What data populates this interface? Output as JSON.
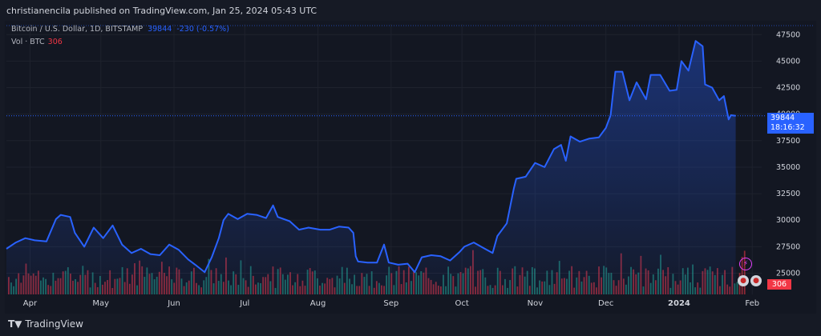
{
  "header": {
    "publish_text": "christianencila published on TradingView.com, Jan 25, 2024 05:43 UTC"
  },
  "legend": {
    "symbol": "Bitcoin / U.S. Dollar, 1D, BITSTAMP",
    "last": "39844",
    "change": "-230 (-0.57%)",
    "vol_label": "Vol · BTC",
    "vol_value": "306"
  },
  "badges": {
    "price": "39844",
    "countdown": "18:16:32",
    "volume": "306"
  },
  "footer": {
    "brand": "TradingView"
  },
  "colors": {
    "line": "#2962ff",
    "up": "#22ab94",
    "down": "#f23645",
    "bg": "#131722",
    "grid": "#1e222d"
  },
  "chart_data": {
    "type": "line",
    "y_ticks": [
      "47500",
      "45000",
      "42500",
      "40000",
      "37500",
      "35000",
      "32500",
      "30000",
      "27500",
      "25000"
    ],
    "ylim": [
      23000,
      48500
    ],
    "x_ticks": [
      {
        "label": "Apr",
        "x": "2023-04-01"
      },
      {
        "label": "May",
        "x": "2023-05-01"
      },
      {
        "label": "Jun",
        "x": "2023-06-01"
      },
      {
        "label": "Jul",
        "x": "2023-07-01"
      },
      {
        "label": "Aug",
        "x": "2023-08-01"
      },
      {
        "label": "Sep",
        "x": "2023-09-01"
      },
      {
        "label": "Oct",
        "x": "2023-10-01"
      },
      {
        "label": "Nov",
        "x": "2023-11-01"
      },
      {
        "label": "Dec",
        "x": "2023-12-01"
      },
      {
        "label": "2024",
        "x": "2024-01-01"
      },
      {
        "label": "Feb",
        "x": "2024-02-01"
      }
    ],
    "xlim": [
      "2023-03-22",
      "2024-02-05"
    ],
    "series": [
      {
        "values": [
          [
            "2023-03-22",
            27300
          ],
          [
            "2023-03-26",
            27900
          ],
          [
            "2023-03-30",
            28300
          ],
          [
            "2023-04-03",
            28100
          ],
          [
            "2023-04-08",
            28000
          ],
          [
            "2023-04-12",
            30100
          ],
          [
            "2023-04-14",
            30500
          ],
          [
            "2023-04-18",
            30300
          ],
          [
            "2023-04-20",
            28800
          ],
          [
            "2023-04-24",
            27500
          ],
          [
            "2023-04-28",
            29300
          ],
          [
            "2023-05-02",
            28300
          ],
          [
            "2023-05-06",
            29500
          ],
          [
            "2023-05-10",
            27700
          ],
          [
            "2023-05-14",
            26900
          ],
          [
            "2023-05-18",
            27300
          ],
          [
            "2023-05-22",
            26800
          ],
          [
            "2023-05-26",
            26700
          ],
          [
            "2023-05-30",
            27700
          ],
          [
            "2023-06-03",
            27200
          ],
          [
            "2023-06-07",
            26300
          ],
          [
            "2023-06-10",
            25800
          ],
          [
            "2023-06-14",
            25100
          ],
          [
            "2023-06-17",
            26500
          ],
          [
            "2023-06-20",
            28300
          ],
          [
            "2023-06-22",
            30000
          ],
          [
            "2023-06-24",
            30600
          ],
          [
            "2023-06-28",
            30100
          ],
          [
            "2023-07-02",
            30600
          ],
          [
            "2023-07-06",
            30500
          ],
          [
            "2023-07-10",
            30200
          ],
          [
            "2023-07-13",
            31400
          ],
          [
            "2023-07-15",
            30300
          ],
          [
            "2023-07-20",
            29900
          ],
          [
            "2023-07-24",
            29100
          ],
          [
            "2023-07-28",
            29300
          ],
          [
            "2023-08-02",
            29100
          ],
          [
            "2023-08-06",
            29100
          ],
          [
            "2023-08-10",
            29400
          ],
          [
            "2023-08-14",
            29300
          ],
          [
            "2023-08-16",
            28800
          ],
          [
            "2023-08-17",
            26600
          ],
          [
            "2023-08-18",
            26100
          ],
          [
            "2023-08-22",
            26000
          ],
          [
            "2023-08-26",
            26000
          ],
          [
            "2023-08-29",
            27700
          ],
          [
            "2023-08-31",
            26000
          ],
          [
            "2023-09-04",
            25800
          ],
          [
            "2023-09-08",
            25900
          ],
          [
            "2023-09-11",
            25100
          ],
          [
            "2023-09-14",
            26500
          ],
          [
            "2023-09-18",
            26700
          ],
          [
            "2023-09-22",
            26600
          ],
          [
            "2023-09-26",
            26200
          ],
          [
            "2023-09-30",
            27000
          ],
          [
            "2023-10-02",
            27500
          ],
          [
            "2023-10-06",
            27900
          ],
          [
            "2023-10-10",
            27400
          ],
          [
            "2023-10-14",
            26900
          ],
          [
            "2023-10-16",
            28500
          ],
          [
            "2023-10-20",
            29700
          ],
          [
            "2023-10-23",
            33000
          ],
          [
            "2023-10-24",
            33900
          ],
          [
            "2023-10-28",
            34100
          ],
          [
            "2023-11-01",
            35400
          ],
          [
            "2023-11-05",
            35000
          ],
          [
            "2023-11-09",
            36700
          ],
          [
            "2023-11-12",
            37100
          ],
          [
            "2023-11-14",
            35600
          ],
          [
            "2023-11-16",
            37900
          ],
          [
            "2023-11-20",
            37400
          ],
          [
            "2023-11-24",
            37700
          ],
          [
            "2023-11-28",
            37800
          ],
          [
            "2023-12-01",
            38700
          ],
          [
            "2023-12-03",
            39900
          ],
          [
            "2023-12-05",
            44000
          ],
          [
            "2023-12-08",
            44000
          ],
          [
            "2023-12-11",
            41300
          ],
          [
            "2023-12-14",
            43000
          ],
          [
            "2023-12-18",
            41400
          ],
          [
            "2023-12-20",
            43700
          ],
          [
            "2023-12-24",
            43700
          ],
          [
            "2023-12-28",
            42200
          ],
          [
            "2023-12-31",
            42300
          ],
          [
            "2024-01-02",
            45000
          ],
          [
            "2024-01-05",
            44100
          ],
          [
            "2024-01-08",
            46900
          ],
          [
            "2024-01-11",
            46400
          ],
          [
            "2024-01-12",
            42800
          ],
          [
            "2024-01-15",
            42500
          ],
          [
            "2024-01-18",
            41300
          ],
          [
            "2024-01-20",
            41700
          ],
          [
            "2024-01-22",
            39500
          ],
          [
            "2024-01-23",
            39900
          ],
          [
            "2024-01-25",
            39844
          ]
        ]
      }
    ]
  }
}
